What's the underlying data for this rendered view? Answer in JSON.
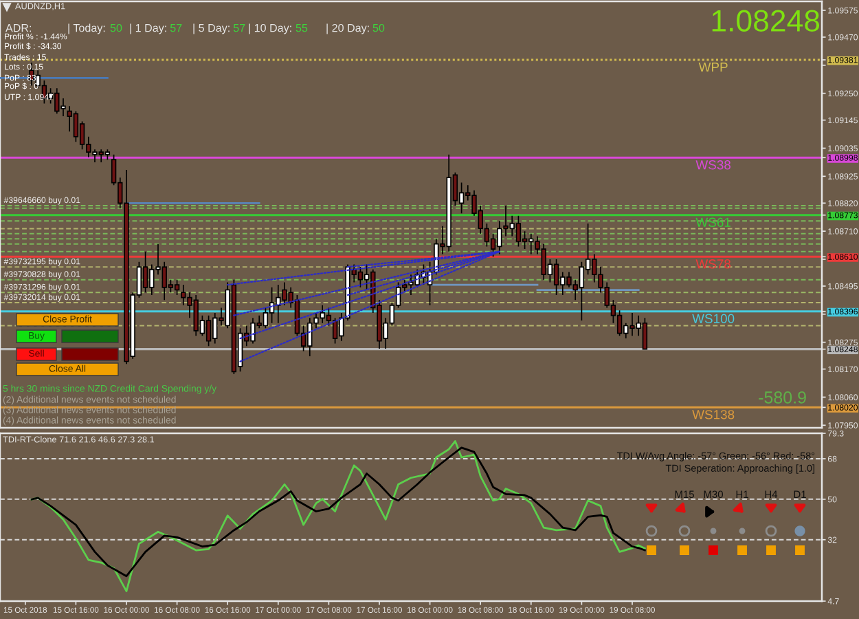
{
  "chart_data": [
    {
      "type": "candlestick",
      "title": "AUDNZD,H1",
      "x": [
        "2018-10-15T09:00",
        "2018-10-15T10:00",
        "2018-10-15T11:00",
        "2018-10-15T12:00",
        "2018-10-15T13:00",
        "2018-10-15T14:00",
        "2018-10-15T15:00",
        "2018-10-15T16:00",
        "2018-10-15T17:00",
        "2018-10-15T18:00",
        "2018-10-15T19:00",
        "2018-10-15T20:00",
        "2018-10-15T21:00",
        "2018-10-15T22:00",
        "2018-10-15T23:00",
        "2018-10-16T00:00",
        "2018-10-16T01:00",
        "2018-10-16T02:00",
        "2018-10-16T03:00",
        "2018-10-16T04:00",
        "2018-10-16T05:00",
        "2018-10-16T06:00",
        "2018-10-16T07:00",
        "2018-10-16T08:00",
        "2018-10-16T09:00",
        "2018-10-16T10:00",
        "2018-10-16T11:00",
        "2018-10-16T12:00",
        "2018-10-16T13:00",
        "2018-10-16T14:00",
        "2018-10-16T15:00",
        "2018-10-16T16:00",
        "2018-10-16T17:00",
        "2018-10-16T18:00",
        "2018-10-16T19:00",
        "2018-10-16T20:00",
        "2018-10-16T21:00",
        "2018-10-16T22:00",
        "2018-10-16T23:00",
        "2018-10-17T00:00",
        "2018-10-17T01:00",
        "2018-10-17T02:00",
        "2018-10-17T03:00",
        "2018-10-17T04:00",
        "2018-10-17T05:00",
        "2018-10-17T06:00",
        "2018-10-17T07:00",
        "2018-10-17T08:00",
        "2018-10-17T09:00",
        "2018-10-17T10:00",
        "2018-10-17T11:00",
        "2018-10-17T12:00",
        "2018-10-17T13:00",
        "2018-10-17T14:00",
        "2018-10-17T15:00",
        "2018-10-17T16:00",
        "2018-10-17T17:00",
        "2018-10-17T18:00",
        "2018-10-17T19:00",
        "2018-10-17T20:00",
        "2018-10-17T21:00",
        "2018-10-17T22:00",
        "2018-10-17T23:00",
        "2018-10-18T00:00",
        "2018-10-18T01:00",
        "2018-10-18T02:00",
        "2018-10-18T03:00",
        "2018-10-18T04:00",
        "2018-10-18T05:00",
        "2018-10-18T06:00",
        "2018-10-18T07:00",
        "2018-10-18T08:00",
        "2018-10-18T09:00",
        "2018-10-18T10:00",
        "2018-10-18T11:00",
        "2018-10-18T12:00",
        "2018-10-18T13:00",
        "2018-10-18T14:00",
        "2018-10-18T15:00",
        "2018-10-18T16:00",
        "2018-10-18T17:00",
        "2018-10-18T18:00",
        "2018-10-18T19:00",
        "2018-10-18T20:00",
        "2018-10-18T21:00",
        "2018-10-18T22:00",
        "2018-10-18T23:00",
        "2018-10-19T00:00",
        "2018-10-19T01:00",
        "2018-10-19T02:00",
        "2018-10-19T03:00",
        "2018-10-19T04:00",
        "2018-10-19T05:00",
        "2018-10-19T06:00",
        "2018-10-19T07:00",
        "2018-10-19T08:00",
        "2018-10-19T09:00",
        "2018-10-19T10:00"
      ],
      "ohlc": [
        [
          1.0934,
          1.0937,
          1.0928,
          1.093
        ],
        [
          1.0928,
          1.0934,
          1.0927,
          1.0932
        ],
        [
          1.0928,
          1.093,
          1.0921,
          1.0923
        ],
        [
          1.0923,
          1.0927,
          1.0921,
          1.0925
        ],
        [
          1.0925,
          1.0927,
          1.0917,
          1.0918
        ],
        [
          1.0919,
          1.0923,
          1.0916,
          1.092
        ],
        [
          1.0918,
          1.092,
          1.091,
          1.0916
        ],
        [
          1.0917,
          1.0918,
          1.0906,
          1.0908
        ],
        [
          1.0913,
          1.0914,
          1.0903,
          1.0905
        ],
        [
          1.0905,
          1.0908,
          1.09,
          1.0902
        ],
        [
          1.0901,
          1.0903,
          1.0898,
          1.0902
        ],
        [
          1.0902,
          1.0903,
          1.0898,
          1.0901
        ],
        [
          1.0901,
          1.0903,
          1.0899,
          1.0902
        ],
        [
          1.0899,
          1.0901,
          1.0889,
          1.089
        ],
        [
          1.089,
          1.0892,
          1.088,
          1.0882
        ],
        [
          1.0882,
          1.0895,
          1.0819,
          1.082
        ],
        [
          1.0822,
          1.0847,
          1.0821,
          1.0846
        ],
        [
          1.0846,
          1.0859,
          1.0845,
          1.0857
        ],
        [
          1.0857,
          1.0863,
          1.0847,
          1.0849
        ],
        [
          1.0849,
          1.0858,
          1.0846,
          1.0856
        ],
        [
          1.0856,
          1.0866,
          1.0854,
          1.0857
        ],
        [
          1.0857,
          1.0859,
          1.0844,
          1.0849
        ],
        [
          1.085,
          1.0852,
          1.0847,
          1.0849
        ],
        [
          1.085,
          1.0852,
          1.0846,
          1.0848
        ],
        [
          1.0847,
          1.085,
          1.0842,
          1.0845
        ],
        [
          1.0845,
          1.0847,
          1.0837,
          1.0842
        ],
        [
          1.0844,
          1.0846,
          1.083,
          1.0832
        ],
        [
          1.0831,
          1.0838,
          1.083,
          1.0836
        ],
        [
          1.0836,
          1.0838,
          1.0826,
          1.0828
        ],
        [
          1.0829,
          1.0839,
          1.0827,
          1.0837
        ],
        [
          1.0837,
          1.0841,
          1.0834,
          1.0836
        ],
        [
          1.0834,
          1.0851,
          1.0833,
          1.0848
        ],
        [
          1.085,
          1.0852,
          1.0815,
          1.0816
        ],
        [
          1.0818,
          1.0833,
          1.0816,
          1.0831
        ],
        [
          1.0831,
          1.0834,
          1.0826,
          1.0828
        ],
        [
          1.0828,
          1.0837,
          1.0827,
          1.0835
        ],
        [
          1.0835,
          1.0838,
          1.0833,
          1.0834
        ],
        [
          1.0834,
          1.0841,
          1.0833,
          1.0839
        ],
        [
          1.0839,
          1.0849,
          1.0835,
          1.0843
        ],
        [
          1.0842,
          1.085,
          1.0835,
          1.0845
        ],
        [
          1.0848,
          1.0851,
          1.0842,
          1.0844
        ],
        [
          1.0847,
          1.0849,
          1.0841,
          1.0843
        ],
        [
          1.0844,
          1.0846,
          1.083,
          1.0831
        ],
        [
          1.0831,
          1.0834,
          1.0824,
          1.0826
        ],
        [
          1.0826,
          1.0837,
          1.0822,
          1.0835
        ],
        [
          1.0835,
          1.0839,
          1.0833,
          1.0837
        ],
        [
          1.0837,
          1.0842,
          1.0835,
          1.0839
        ],
        [
          1.0838,
          1.0841,
          1.0834,
          1.0836
        ],
        [
          1.0836,
          1.0837,
          1.0827,
          1.0829
        ],
        [
          1.083,
          1.0839,
          1.0828,
          1.0837
        ],
        [
          1.0837,
          1.0858,
          1.0836,
          1.0857
        ],
        [
          1.0856,
          1.0858,
          1.0851,
          1.0854
        ],
        [
          1.0855,
          1.0857,
          1.0849,
          1.0852
        ],
        [
          1.0852,
          1.0858,
          1.0848,
          1.0854
        ],
        [
          1.0855,
          1.0856,
          1.0839,
          1.0841
        ],
        [
          1.0842,
          1.0844,
          1.0825,
          1.0828
        ],
        [
          1.0829,
          1.0837,
          1.0825,
          1.0835
        ],
        [
          1.0835,
          1.0843,
          1.0834,
          1.0842
        ],
        [
          1.0842,
          1.0851,
          1.0841,
          1.0849
        ],
        [
          1.085,
          1.0852,
          1.0847,
          1.0849
        ],
        [
          1.085,
          1.0854,
          1.0846,
          1.0851
        ],
        [
          1.085,
          1.0856,
          1.0849,
          1.0854
        ],
        [
          1.0853,
          1.0858,
          1.085,
          1.0855
        ],
        [
          1.085,
          1.0859,
          1.0842,
          1.0855
        ],
        [
          1.0855,
          1.0868,
          1.0854,
          1.0866
        ],
        [
          1.0866,
          1.0873,
          1.0862,
          1.0865
        ],
        [
          1.0865,
          1.0901,
          1.0863,
          1.0892
        ],
        [
          1.0893,
          1.0894,
          1.0881,
          1.0883
        ],
        [
          1.0882,
          1.089,
          1.0878,
          1.0886
        ],
        [
          1.0886,
          1.0889,
          1.0883,
          1.0885
        ],
        [
          1.0885,
          1.0887,
          1.0877,
          1.0878
        ],
        [
          1.0879,
          1.0881,
          1.087,
          1.0872
        ],
        [
          1.0872,
          1.0874,
          1.0865,
          1.0867
        ],
        [
          1.0868,
          1.087,
          1.0861,
          1.0864
        ],
        [
          1.0865,
          1.0875,
          1.0862,
          1.0872
        ],
        [
          1.0873,
          1.0881,
          1.0869,
          1.0872
        ],
        [
          1.0872,
          1.0877,
          1.0869,
          1.0874
        ],
        [
          1.0874,
          1.0877,
          1.0865,
          1.0867
        ],
        [
          1.0868,
          1.0871,
          1.0864,
          1.0867
        ],
        [
          1.0867,
          1.087,
          1.0862,
          1.0868
        ],
        [
          1.0867,
          1.0869,
          1.0862,
          1.0864
        ],
        [
          1.0864,
          1.0866,
          1.0852,
          1.0854
        ],
        [
          1.0854,
          1.086,
          1.0851,
          1.0858
        ],
        [
          1.0858,
          1.086,
          1.0846,
          1.085
        ],
        [
          1.085,
          1.0855,
          1.0846,
          1.0853
        ],
        [
          1.0853,
          1.0855,
          1.0849,
          1.085
        ],
        [
          1.085,
          1.0852,
          1.0844,
          1.0848
        ],
        [
          1.0849,
          1.0859,
          1.0836,
          1.0857
        ],
        [
          1.0856,
          1.0874,
          1.0854,
          1.086
        ],
        [
          1.086,
          1.0862,
          1.0851,
          1.0854
        ],
        [
          1.0854,
          1.0857,
          1.0847,
          1.0849
        ],
        [
          1.0849,
          1.0851,
          1.0841,
          1.0842
        ],
        [
          1.0842,
          1.0844,
          1.0835,
          1.0838
        ],
        [
          1.0838,
          1.084,
          1.083,
          1.0831
        ],
        [
          1.0831,
          1.0835,
          1.0829,
          1.0834
        ],
        [
          1.0834,
          1.0839,
          1.083,
          1.0833
        ],
        [
          1.0833,
          1.0838,
          1.083,
          1.0835
        ],
        [
          1.0835,
          1.0837,
          1.08248,
          1.08248
        ]
      ],
      "colors": [
        "#6e1212",
        "#ffffff",
        "#6e1212",
        "#ffffff",
        "#6e1212",
        "#ffffff",
        "#6e1212",
        "#6e1212",
        "#6e1212",
        "#6e1212",
        "#ffffff",
        "#6e1212",
        "#ffffff",
        "#6e1212",
        "#6e1212",
        "#6e1212",
        "#ffffff",
        "#ffffff",
        "#6e1212",
        "#ffffff",
        "#ffffff",
        "#6e1212",
        "#6e1212",
        "#6e1212",
        "#6e1212",
        "#6e1212",
        "#6e1212",
        "#ffffff",
        "#6e1212",
        "#ffffff",
        "#6e1212",
        "#ffffff",
        "#6e1212",
        "#ffffff",
        "#6e1212",
        "#ffffff",
        "#6e1212",
        "#ffffff",
        "#ffffff",
        "#ffffff",
        "#6e1212",
        "#6e1212",
        "#6e1212",
        "#6e1212",
        "#ffffff",
        "#ffffff",
        "#ffffff",
        "#6e1212",
        "#6e1212",
        "#ffffff",
        "#ffffff",
        "#6e1212",
        "#6e1212",
        "#ffffff",
        "#6e1212",
        "#6e1212",
        "#ffffff",
        "#ffffff",
        "#ffffff",
        "#6e1212",
        "#ffffff",
        "#ffffff",
        "#ffffff",
        "#ffffff",
        "#ffffff",
        "#6e1212",
        "#ffffff",
        "#6e1212",
        "#ffffff",
        "#6e1212",
        "#6e1212",
        "#6e1212",
        "#6e1212",
        "#6e1212",
        "#ffffff",
        "#6e1212",
        "#ffffff",
        "#6e1212",
        "#6e1212",
        "#ffffff",
        "#6e1212",
        "#6e1212",
        "#ffffff",
        "#6e1212",
        "#ffffff",
        "#6e1212",
        "#6e1212",
        "#ffffff",
        "#ffffff",
        "#6e1212",
        "#6e1212",
        "#6e1212",
        "#6e1212",
        "#6e1212",
        "#ffffff",
        "#6e1212",
        "#ffffff",
        "#6e1212"
      ],
      "series": [
        {
          "type": "line",
          "x": [
            "2018-10-15T04:00",
            "2018-10-15T21:00"
          ],
          "values": [
            1.0931,
            1.0931
          ],
          "color": "#4a7ab8",
          "line_style": "solid"
        },
        {
          "type": "line",
          "x": [
            "2018-10-16T00:00",
            "2018-10-16T21:00"
          ],
          "values": [
            1.0882,
            1.0882
          ],
          "color": "#5a84b8",
          "line_style": "solid"
        },
        {
          "type": "line",
          "x": [
            "2018-10-18T00:00",
            "2018-10-18T17:00"
          ],
          "values": [
            1.085,
            1.085
          ],
          "color": "#7096c0",
          "line_style": "solid"
        },
        {
          "type": "line",
          "x": [
            "2018-10-18T17:00",
            "2018-10-19T09:00"
          ],
          "values": [
            1.0848,
            1.0848
          ],
          "color": "#7096c0",
          "line_style": "solid"
        },
        {
          "type": "line",
          "x": [
            "2018-10-16T16:00",
            "2018-10-18T11:00"
          ],
          "values": [
            1.085,
            1.0863
          ],
          "color": "#2c2cc8",
          "line_style": "dotted"
        },
        {
          "type": "line",
          "x": [
            "2018-10-16T17:00",
            "2018-10-18T11:00"
          ],
          "values": [
            1.0838,
            1.0863
          ],
          "color": "#2c2cc8",
          "line_style": "dotted"
        },
        {
          "type": "line",
          "x": [
            "2018-10-16T18:00",
            "2018-10-18T11:00"
          ],
          "values": [
            1.0829,
            1.0863
          ],
          "color": "#2c2cc8",
          "line_style": "dotted"
        },
        {
          "type": "line",
          "x": [
            "2018-10-16T18:00",
            "2018-10-18T11:00"
          ],
          "values": [
            1.082,
            1.0863
          ],
          "color": "#2c2cc8",
          "line_style": "dotted"
        },
        {
          "type": "line",
          "x": [
            "2018-10-17T11:00",
            "2018-10-18T11:00"
          ],
          "values": [
            1.0857,
            1.0863
          ],
          "color": "#2c2cc8",
          "line_style": "dotted"
        },
        {
          "type": "line",
          "x": [
            "2018-10-17T11:00",
            "2018-10-18T11:00"
          ],
          "values": [
            1.0846,
            1.0863
          ],
          "color": "#2c2cc8",
          "line_style": "dotted"
        }
      ],
      "ref_lines": [
        {
          "axis": "y",
          "value": 1.09381,
          "label": "WPP",
          "color": "#d2bc50",
          "line_style": "dotted"
        },
        {
          "axis": "y",
          "value": 1.08998,
          "label": "WS38",
          "color": "#d848d8",
          "line_style": "solid"
        },
        {
          "axis": "y",
          "value": 1.08773,
          "label": "WS61",
          "color": "#36cc36",
          "line_style": "solid"
        },
        {
          "axis": "y",
          "value": 1.0861,
          "label": "WS78",
          "color": "#ee3a3a",
          "line_style": "solid"
        },
        {
          "axis": "y",
          "value": 1.08396,
          "label": "WS100",
          "color": "#46cce0",
          "line_style": "solid"
        },
        {
          "axis": "y",
          "value": 1.08248,
          "color": "#b8b8b8",
          "line_style": "solid"
        },
        {
          "axis": "y",
          "value": 1.0802,
          "label": "WS138",
          "color": "#dc9a3c",
          "line_style": "solid"
        },
        {
          "axis": "y",
          "value": 1.0881,
          "label": "#39646660 buy 0.01",
          "color": "#7ab85a",
          "line_style": "dashed"
        },
        {
          "axis": "y",
          "value": 1.088,
          "color": "#7ab85a",
          "line_style": "dashed"
        },
        {
          "axis": "y",
          "value": 1.0875,
          "color": "#7ab85a",
          "line_style": "dashed"
        },
        {
          "axis": "y",
          "value": 1.0872,
          "color": "#b4b46e",
          "line_style": "dashed"
        },
        {
          "axis": "y",
          "value": 1.087,
          "color": "#7ab85a",
          "line_style": "dashed"
        },
        {
          "axis": "y",
          "value": 1.0868,
          "color": "#7ab85a",
          "line_style": "dashed"
        },
        {
          "axis": "y",
          "value": 1.0866,
          "color": "#7ab85a",
          "line_style": "dashed"
        },
        {
          "axis": "y",
          "value": 1.0863,
          "color": "#7ab85a",
          "line_style": "dashed"
        },
        {
          "axis": "y",
          "value": 1.0857,
          "label": "#39732195 buy 0.01",
          "color": "#b4b46e",
          "line_style": "dashed"
        },
        {
          "axis": "y",
          "value": 1.0852,
          "label": "#39730828 buy 0.01",
          "color": "#7ab85a",
          "line_style": "dashed"
        },
        {
          "axis": "y",
          "value": 1.0847,
          "label": "#39731296 buy 0.01",
          "color": "#9ab864",
          "line_style": "dashed"
        },
        {
          "axis": "y",
          "value": 1.0843,
          "label": "#39732014 buy 0.01",
          "color": "#b4b46e",
          "line_style": "dashed"
        },
        {
          "axis": "y",
          "value": 1.0834,
          "color": "#b4b46e",
          "line_style": "dashed"
        }
      ],
      "annotations": [
        "ADR:",
        "| Today:",
        "50",
        "| 1 Day:",
        "57",
        "| 5 Day:",
        "57",
        "| 10 Day:",
        "55",
        "| 20 Day:",
        "50",
        "Profit % : -1.44%",
        "Profit $ : -34.30",
        "Trades : 15",
        "Lots : 0.15",
        "PoP : 83",
        "PoP $ : 0",
        "UTP : 1.0947",
        "1.08248",
        "-580.9",
        "5 hrs 30 mins since NZD Credit Card Spending y/y",
        "(2) Additional news events not scheduled",
        "(3) Additional news events not scheduled",
        "(4) Additional news events not scheduled",
        "Close Profit",
        "Buy",
        "Sell",
        "Close All"
      ],
      "xlim": [
        "2018-10-15T04:00",
        "2018-10-20T14:00"
      ],
      "ylim": [
        1.0794,
        1.0961
      ],
      "yticks": [
        1.09575,
        {
          "value": 1.0947,
          "label": "1.09470"
        },
        {
          "value": 1.0936,
          "label": null
        },
        {
          "value": 1.09381,
          "label": "1.09381"
        },
        {
          "value": 1.0925,
          "label": "1.09250"
        },
        1.09145,
        1.09035,
        {
          "value": 1.08998,
          "label": "1.08998"
        },
        1.08925,
        {
          "value": 1.0882,
          "label": "1.08820"
        },
        {
          "value": 1.08773,
          "label": "1.08773"
        },
        {
          "value": 1.0871,
          "label": "1.08710"
        },
        {
          "value": 1.086,
          "label": null
        },
        {
          "value": 1.0861,
          "label": "1.08610"
        },
        1.08495,
        {
          "value": 1.08385,
          "label": null
        },
        {
          "value": 1.08396,
          "label": "1.08396"
        },
        1.08275,
        {
          "value": 1.08248,
          "label": "1.08248"
        },
        {
          "value": 1.0817,
          "label": "1.08170"
        },
        {
          "value": 1.0806,
          "label": "1.08060"
        },
        {
          "value": 1.0802,
          "label": "1.08020"
        },
        {
          "value": 1.0795,
          "label": "1.07950"
        }
      ],
      "tick_labels": "y"
    },
    {
      "type": "line",
      "title": "TDI-RT-Clone 71.6 21.6 46.6 27.3 28.1",
      "series": [
        {
          "color": "#5ccf4c",
          "x": [
            "2018-10-15T09:00",
            "2018-10-15T10:00",
            "2018-10-15T12:00",
            "2018-10-15T14:00",
            "2018-10-15T16:00",
            "2018-10-15T18:00",
            "2018-10-15T20:00",
            "2018-10-15T22:00",
            "2018-10-16T00:00",
            "2018-10-16T02:00",
            "2018-10-16T05:00",
            "2018-10-16T07:00",
            "2018-10-16T09:00",
            "2018-10-16T11:00",
            "2018-10-16T13:00",
            "2018-10-16T14:00",
            "2018-10-16T16:00",
            "2018-10-16T18:00",
            "2018-10-16T20:00",
            "2018-10-16T23:00",
            "2018-10-17T01:00",
            "2018-10-17T02:00",
            "2018-10-17T04:00",
            "2018-10-17T06:00",
            "2018-10-17T07:00",
            "2018-10-17T09:00",
            "2018-10-17T10:00",
            "2018-10-17T12:00",
            "2018-10-17T13:00",
            "2018-10-17T15:00",
            "2018-10-17T17:00",
            "2018-10-17T19:00",
            "2018-10-17T21:00",
            "2018-10-18T00:00",
            "2018-10-18T01:00",
            "2018-10-18T03:00",
            "2018-10-18T04:00",
            "2018-10-18T05:00",
            "2018-10-18T07:00",
            "2018-10-18T08:00",
            "2018-10-18T10:00",
            "2018-10-18T11:00",
            "2018-10-18T12:00",
            "2018-10-18T14:00",
            "2018-10-18T16:00",
            "2018-10-18T18:00",
            "2018-10-18T20:00",
            "2018-10-18T23:00",
            "2018-10-19T01:00",
            "2018-10-19T03:00",
            "2018-10-19T04:00",
            "2018-10-19T06:00",
            "2018-10-19T08:00",
            "2018-10-19T09:00",
            "2018-10-19T10:00"
          ],
          "values": [
            49.9,
            50.6,
            46.5,
            41.0,
            32.6,
            23.0,
            21.8,
            19.4,
            9.1,
            30.2,
            35.5,
            33.1,
            30.2,
            27.3,
            27.8,
            31.4,
            42.7,
            36.9,
            43.4,
            49.4,
            56.6,
            53.0,
            38.6,
            48.2,
            50.1,
            44.6,
            51.8,
            65.0,
            62.6,
            51.8,
            41.0,
            56.6,
            59.5,
            61.4,
            68.6,
            72.2,
            75.8,
            68.6,
            69.8,
            60.2,
            49.4,
            50.1,
            54.7,
            52.3,
            48.2,
            37.4,
            36.2,
            36.9,
            49.4,
            47.0,
            37.4,
            26.6,
            28.3,
            29.5,
            28.1
          ]
        },
        {
          "color": "#000000",
          "x": [
            "2018-10-15T09:00",
            "2018-10-15T10:00",
            "2018-10-15T12:00",
            "2018-10-15T16:00",
            "2018-10-15T19:00",
            "2018-10-15T21:00",
            "2018-10-16T00:00",
            "2018-10-16T03:00",
            "2018-10-16T06:00",
            "2018-10-16T08:00",
            "2018-10-16T12:00",
            "2018-10-16T14:00",
            "2018-10-16T17:00",
            "2018-10-16T19:00",
            "2018-10-16T21:00",
            "2018-10-17T00:00",
            "2018-10-17T02:00",
            "2018-10-17T03:00",
            "2018-10-17T06:00",
            "2018-10-17T08:00",
            "2018-10-17T10:00",
            "2018-10-17T13:00",
            "2018-10-17T14:00",
            "2018-10-17T16:00",
            "2018-10-17T18:00",
            "2018-10-17T19:00",
            "2018-10-17T22:00",
            "2018-10-18T00:00",
            "2018-10-18T03:00",
            "2018-10-18T05:00",
            "2018-10-18T07:00",
            "2018-10-18T09:00",
            "2018-10-18T10:00",
            "2018-10-18T12:00",
            "2018-10-18T15:00",
            "2018-10-18T16:00",
            "2018-10-18T19:00",
            "2018-10-18T21:00",
            "2018-10-18T23:00",
            "2018-10-19T01:00",
            "2018-10-19T03:00",
            "2018-10-19T04:00",
            "2018-10-19T05:00",
            "2018-10-19T08:00",
            "2018-10-19T09:00",
            "2018-10-19T10:00"
          ],
          "values": [
            49.9,
            50.6,
            47.0,
            38.6,
            26.6,
            20.6,
            15.8,
            26.6,
            33.8,
            33.1,
            29.0,
            29.7,
            36.2,
            39.8,
            44.6,
            49.4,
            53.5,
            49.4,
            44.6,
            45.8,
            50.6,
            56.6,
            61.4,
            56.6,
            50.6,
            49.4,
            56.6,
            61.9,
            68.6,
            72.9,
            71.0,
            61.4,
            55.4,
            52.3,
            51.8,
            50.6,
            43.4,
            37.4,
            36.2,
            42.2,
            42.9,
            42.2,
            35.0,
            29.0,
            28.3,
            27.3
          ]
        }
      ],
      "ref_lines": [
        {
          "axis": "y",
          "value": 68,
          "color": "#d8d8d8",
          "line_style": "dashed"
        },
        {
          "axis": "y",
          "value": 50,
          "color": "#d8d8d8",
          "line_style": "dashed"
        },
        {
          "axis": "y",
          "value": 32,
          "color": "#d8d8d8",
          "line_style": "dashed"
        }
      ],
      "annotations": [
        "TDI W/Avg Angle: -57° Green: -56° Red: -58°",
        "TDI Seperation: Approaching [1.0]",
        "M15",
        "M30",
        "H1",
        "H4",
        "D1"
      ],
      "xlim": [
        "2018-10-15T04:00",
        "2018-10-20T14:00"
      ],
      "xticks": [
        {
          "value": "2018-10-15T08:00",
          "label": "15 Oct 2018"
        },
        {
          "value": "2018-10-15T16:00",
          "label": "15 Oct 16:00"
        },
        {
          "value": "2018-10-16T00:00",
          "label": "16 Oct 00:00"
        },
        {
          "value": "2018-10-16T08:00",
          "label": "16 Oct 08:00"
        },
        {
          "value": "2018-10-16T16:00",
          "label": "16 Oct 16:00"
        },
        {
          "value": "2018-10-17T00:00",
          "label": "17 Oct 00:00"
        },
        {
          "value": "2018-10-17T08:00",
          "label": "17 Oct 08:00"
        },
        {
          "value": "2018-10-17T16:00",
          "label": "17 Oct 16:00"
        },
        {
          "value": "2018-10-18T00:00",
          "label": "18 Oct 00:00"
        },
        {
          "value": "2018-10-18T08:00",
          "label": "18 Oct 08:00"
        },
        {
          "value": "2018-10-18T16:00",
          "label": "18 Oct 16:00"
        },
        {
          "value": "2018-10-19T00:00",
          "label": "19 Oct 00:00"
        },
        {
          "value": "2018-10-19T08:00",
          "label": "19 Oct 08:00"
        }
      ],
      "ylim": [
        4.7,
        79.3
      ],
      "yticks": [
        79.3,
        68,
        50,
        32,
        4.7
      ]
    }
  ]
}
